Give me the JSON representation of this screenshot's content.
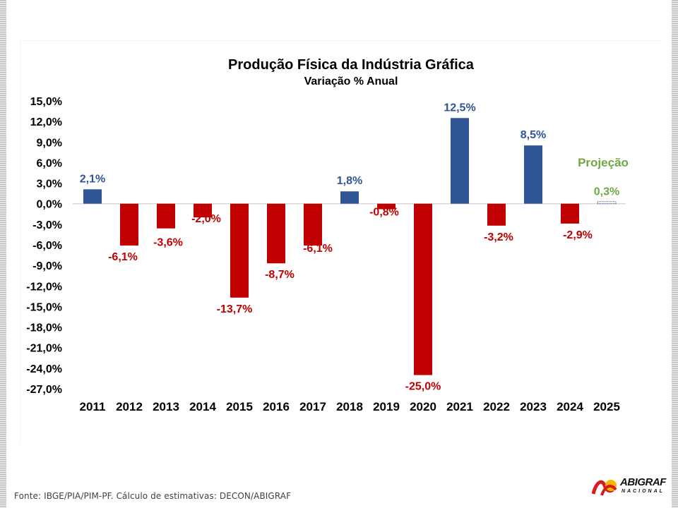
{
  "chart_data": {
    "type": "bar",
    "title": "Produção Física da Indústria Gráfica",
    "subtitle": "Variação % Anual",
    "xlabel": "",
    "ylabel": "",
    "ylim": [
      -27,
      15
    ],
    "yticks": [
      15,
      12,
      9,
      6,
      3,
      0,
      -3,
      -6,
      -9,
      -12,
      -15,
      -18,
      -21,
      -24,
      -27
    ],
    "ytick_labels": [
      "15,0%",
      "12,0%",
      "9,0%",
      "6,0%",
      "3,0%",
      "0,0%",
      "-3,0%",
      "-6,0%",
      "-9,0%",
      "-12,0%",
      "-15,0%",
      "-18,0%",
      "-21,0%",
      "-24,0%",
      "-27,0%"
    ],
    "grid": false,
    "categories": [
      "2011",
      "2012",
      "2013",
      "2014",
      "2015",
      "2016",
      "2017",
      "2018",
      "2019",
      "2020",
      "2021",
      "2022",
      "2023",
      "2024",
      "2025"
    ],
    "values": [
      2.1,
      -6.1,
      -3.6,
      -2.0,
      -13.7,
      -8.7,
      -6.1,
      1.8,
      -0.8,
      -25.0,
      12.5,
      -3.2,
      8.5,
      -2.9,
      0.3
    ],
    "data_labels": [
      "2,1%",
      "-6,1%",
      "-3,6%",
      "-2,0%",
      "-13,7%",
      "-8,7%",
      "-6,1%",
      "1,8%",
      "-0,8%",
      "-25,0%",
      "12,5%",
      "-3,2%",
      "8,5%",
      "-2,9%",
      "0,3%"
    ],
    "projection_index": 14,
    "annotation": "Projeção",
    "colors": {
      "positive": "#2f5597",
      "negative": "#c00000",
      "projection": "#70a845",
      "axis_line": "#d9d9d9"
    }
  },
  "footer": {
    "source": "Fonte: IBGE/PIA/PIM-PF. Cálculo de estimativas: DECON/ABIGRAF",
    "logo_name": "ABIGRAF",
    "logo_sub": "NACIONAL"
  }
}
